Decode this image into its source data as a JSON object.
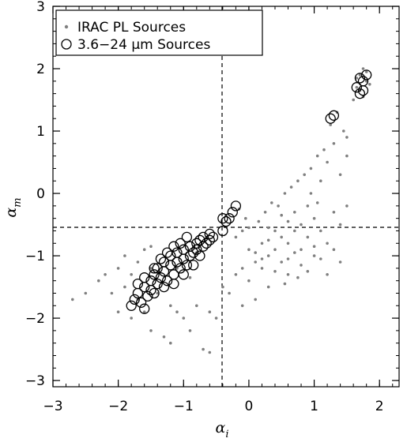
{
  "chart_data": {
    "type": "scatter",
    "title": "",
    "xlabel": "α",
    "xlabel_sub": "i",
    "ylabel": "α",
    "ylabel_sub": "m",
    "xlim": [
      -3,
      2.3
    ],
    "ylim": [
      -3.1,
      3
    ],
    "x_ticks": [
      -3,
      -2,
      -1,
      0,
      1,
      2
    ],
    "x_tick_labels": [
      "−3",
      "−2",
      "−1",
      "0",
      "1",
      "2"
    ],
    "y_ticks": [
      -3,
      -2,
      -1,
      0,
      1,
      2,
      3
    ],
    "y_tick_labels": [
      "−3",
      "−2",
      "−1",
      "0",
      "1",
      "2",
      "3"
    ],
    "grid": false,
    "legend_position": "top-left",
    "reference_lines": [
      {
        "orientation": "vertical",
        "value": -0.5,
        "style": "dashed"
      },
      {
        "orientation": "horizontal",
        "value": -0.5,
        "style": "dashed"
      }
    ],
    "series": [
      {
        "name": "IRAC PL Sources",
        "marker": "dot",
        "color": "#808080",
        "points": [
          [
            -2.7,
            -1.7
          ],
          [
            -2.5,
            -1.6
          ],
          [
            -2.3,
            -1.4
          ],
          [
            -2.2,
            -1.3
          ],
          [
            -2.1,
            -1.6
          ],
          [
            -2.0,
            -1.2
          ],
          [
            -2.0,
            -1.9
          ],
          [
            -1.9,
            -1.5
          ],
          [
            -1.9,
            -1.0
          ],
          [
            -1.8,
            -1.3
          ],
          [
            -1.8,
            -2.0
          ],
          [
            -1.7,
            -1.1
          ],
          [
            -1.7,
            -1.7
          ],
          [
            -1.6,
            -0.9
          ],
          [
            -1.6,
            -1.9
          ],
          [
            -1.5,
            -1.2
          ],
          [
            -1.5,
            -2.2
          ],
          [
            -1.4,
            -1.6
          ],
          [
            -1.3,
            -2.3
          ],
          [
            -1.2,
            -1.8
          ],
          [
            -1.2,
            -2.4
          ],
          [
            -1.1,
            -1.9
          ],
          [
            -1.0,
            -2.0
          ],
          [
            -0.9,
            -2.2
          ],
          [
            -0.8,
            -1.8
          ],
          [
            -0.7,
            -2.5
          ],
          [
            -0.6,
            -1.9
          ],
          [
            -0.6,
            -2.55
          ],
          [
            -0.5,
            -2.0
          ],
          [
            -0.4,
            -1.5
          ],
          [
            -0.3,
            -1.6
          ],
          [
            -0.2,
            -1.3
          ],
          [
            -0.1,
            -1.8
          ],
          [
            -0.1,
            -1.2
          ],
          [
            0.0,
            -1.4
          ],
          [
            0.0,
            -0.9
          ],
          [
            0.1,
            -1.1
          ],
          [
            0.1,
            -1.7
          ],
          [
            0.2,
            -1.2
          ],
          [
            0.2,
            -0.8
          ],
          [
            0.3,
            -1.0
          ],
          [
            0.3,
            -1.5
          ],
          [
            0.4,
            -0.9
          ],
          [
            0.4,
            -0.6
          ],
          [
            0.5,
            -1.1
          ],
          [
            0.5,
            -0.7
          ],
          [
            0.6,
            -0.8
          ],
          [
            0.6,
            -1.3
          ],
          [
            0.7,
            -0.6
          ],
          [
            0.7,
            -0.3
          ],
          [
            0.8,
            -0.9
          ],
          [
            0.8,
            -0.5
          ],
          [
            0.9,
            -0.7
          ],
          [
            0.9,
            -0.2
          ],
          [
            1.0,
            -1.0
          ],
          [
            1.0,
            -0.4
          ],
          [
            1.1,
            -0.6
          ],
          [
            1.1,
            0.2
          ],
          [
            1.2,
            -0.8
          ],
          [
            1.2,
            0.5
          ],
          [
            1.3,
            -0.3
          ],
          [
            1.3,
            0.8
          ],
          [
            1.4,
            -0.5
          ],
          [
            1.4,
            0.3
          ],
          [
            1.5,
            0.9
          ],
          [
            1.5,
            -0.2
          ],
          [
            0.45,
            -0.2
          ],
          [
            0.55,
            0.0
          ],
          [
            0.65,
            0.1
          ],
          [
            0.75,
            0.2
          ],
          [
            0.85,
            0.3
          ],
          [
            0.95,
            0.4
          ],
          [
            1.05,
            0.6
          ],
          [
            1.15,
            0.7
          ],
          [
            1.25,
            1.1
          ],
          [
            1.35,
            1.3
          ],
          [
            1.45,
            1.0
          ],
          [
            -0.2,
            -0.7
          ],
          [
            -0.1,
            -0.6
          ],
          [
            0.0,
            -0.55
          ],
          [
            0.15,
            -0.45
          ],
          [
            0.25,
            -0.3
          ],
          [
            0.35,
            -0.15
          ],
          [
            0.1,
            -0.95
          ],
          [
            0.2,
            -1.05
          ],
          [
            0.3,
            -0.75
          ],
          [
            0.4,
            -1.25
          ],
          [
            0.6,
            -1.05
          ],
          [
            0.7,
            -0.95
          ],
          [
            0.8,
            -1.15
          ],
          [
            0.9,
            -1.25
          ],
          [
            1.0,
            -0.85
          ],
          [
            1.1,
            -1.05
          ],
          [
            1.2,
            -1.3
          ],
          [
            -0.05,
            -0.4
          ],
          [
            -0.15,
            -0.25
          ],
          [
            -1.5,
            -0.85
          ],
          [
            -1.1,
            -1.2
          ],
          [
            -0.8,
            -0.95
          ],
          [
            -0.9,
            -1.35
          ],
          [
            1.6,
            1.5
          ],
          [
            1.65,
            1.7
          ],
          [
            1.7,
            1.9
          ],
          [
            1.75,
            2.0
          ],
          [
            1.8,
            1.8
          ],
          [
            1.7,
            1.65
          ],
          [
            1.75,
            1.55
          ],
          [
            1.8,
            1.95
          ],
          [
            1.85,
            1.75
          ],
          [
            1.65,
            1.85
          ],
          [
            0.55,
            -1.45
          ],
          [
            0.75,
            -1.35
          ],
          [
            1.3,
            -0.9
          ],
          [
            1.4,
            -1.1
          ],
          [
            1.5,
            0.6
          ],
          [
            0.95,
            0.0
          ],
          [
            1.05,
            -0.15
          ],
          [
            0.5,
            -0.35
          ],
          [
            0.6,
            -0.45
          ],
          [
            0.3,
            -0.55
          ]
        ]
      },
      {
        "name": "3.6−24 μm Sources",
        "marker": "circle",
        "color": "#000000",
        "points": [
          [
            -1.8,
            -1.8
          ],
          [
            -1.75,
            -1.7
          ],
          [
            -1.7,
            -1.6
          ],
          [
            -1.65,
            -1.75
          ],
          [
            -1.6,
            -1.5
          ],
          [
            -1.55,
            -1.65
          ],
          [
            -1.5,
            -1.4
          ],
          [
            -1.5,
            -1.55
          ],
          [
            -1.45,
            -1.3
          ],
          [
            -1.4,
            -1.45
          ],
          [
            -1.4,
            -1.2
          ],
          [
            -1.35,
            -1.35
          ],
          [
            -1.3,
            -1.1
          ],
          [
            -1.3,
            -1.25
          ],
          [
            -1.25,
            -1.4
          ],
          [
            -1.2,
            -1.0
          ],
          [
            -1.2,
            -1.15
          ],
          [
            -1.15,
            -1.3
          ],
          [
            -1.1,
            -0.95
          ],
          [
            -1.1,
            -1.1
          ],
          [
            -1.05,
            -1.2
          ],
          [
            -1.0,
            -0.9
          ],
          [
            -1.0,
            -1.05
          ],
          [
            -0.95,
            -1.15
          ],
          [
            -0.9,
            -0.85
          ],
          [
            -0.9,
            -1.0
          ],
          [
            -0.85,
            -0.95
          ],
          [
            -0.8,
            -0.8
          ],
          [
            -0.8,
            -0.9
          ],
          [
            -0.75,
            -0.75
          ],
          [
            -0.7,
            -0.85
          ],
          [
            -0.7,
            -0.7
          ],
          [
            -0.65,
            -0.8
          ],
          [
            -0.6,
            -0.65
          ],
          [
            -0.6,
            -0.75
          ],
          [
            -0.55,
            -0.7
          ],
          [
            -1.7,
            -1.45
          ],
          [
            -1.6,
            -1.35
          ],
          [
            -1.45,
            -1.2
          ],
          [
            -1.35,
            -1.05
          ],
          [
            -1.25,
            -0.95
          ],
          [
            -1.15,
            -0.85
          ],
          [
            -1.05,
            -0.8
          ],
          [
            -0.95,
            -0.7
          ],
          [
            -1.6,
            -1.85
          ],
          [
            -1.45,
            -1.6
          ],
          [
            -1.3,
            -1.5
          ],
          [
            -1.15,
            -1.45
          ],
          [
            -1.0,
            -1.3
          ],
          [
            -0.85,
            -1.15
          ],
          [
            -0.75,
            -1.0
          ],
          [
            -0.4,
            -0.6
          ],
          [
            -0.35,
            -0.45
          ],
          [
            -0.3,
            -0.4
          ],
          [
            -0.25,
            -0.3
          ],
          [
            -0.2,
            -0.2
          ],
          [
            -0.4,
            -0.4
          ],
          [
            1.25,
            1.2
          ],
          [
            1.3,
            1.25
          ],
          [
            1.65,
            1.7
          ],
          [
            1.7,
            1.6
          ],
          [
            1.75,
            1.8
          ],
          [
            1.8,
            1.9
          ],
          [
            1.7,
            1.85
          ],
          [
            1.75,
            1.65
          ]
        ]
      }
    ]
  }
}
